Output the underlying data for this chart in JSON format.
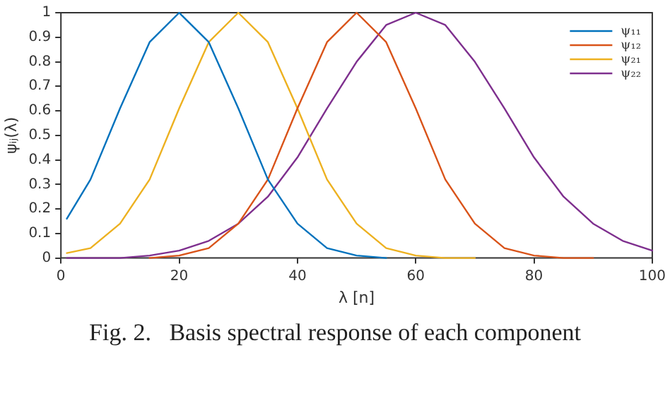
{
  "chart_data": {
    "type": "line",
    "xlabel": "λ [n]",
    "ylabel": "ψᵢⱼ(λ)",
    "x": [
      1,
      5,
      10,
      15,
      20,
      25,
      30,
      35,
      40,
      45,
      50,
      55,
      60,
      65,
      70,
      75,
      80,
      85,
      90,
      95,
      100
    ],
    "series": [
      {
        "name": "ψ₁₁",
        "color": "#0072bd",
        "values": [
          0.16,
          0.32,
          0.61,
          0.88,
          1,
          0.88,
          0.61,
          0.32,
          0.14,
          0.04,
          0.01,
          0,
          null,
          null,
          null,
          null,
          null,
          null,
          null,
          null,
          null
        ]
      },
      {
        "name": "ψ₁₂",
        "color": "#d95319",
        "values": [
          null,
          null,
          null,
          0,
          0.01,
          0.04,
          0.14,
          0.32,
          0.61,
          0.88,
          1,
          0.88,
          0.61,
          0.32,
          0.14,
          0.04,
          0.01,
          0,
          0,
          null,
          null
        ]
      },
      {
        "name": "ψ₂₁",
        "color": "#edb120",
        "values": [
          0.02,
          0.04,
          0.14,
          0.32,
          0.61,
          0.88,
          1,
          0.88,
          0.61,
          0.32,
          0.14,
          0.04,
          0.01,
          0,
          0,
          null,
          null,
          null,
          null,
          null,
          null
        ]
      },
      {
        "name": "ψ₂₂",
        "color": "#7e2f8e",
        "values": [
          0,
          0,
          0,
          0.01,
          0.03,
          0.07,
          0.14,
          0.25,
          0.41,
          0.61,
          0.8,
          0.95,
          1,
          0.95,
          0.8,
          0.61,
          0.41,
          0.25,
          0.14,
          0.07,
          0.03
        ]
      }
    ],
    "xlim": [
      0,
      100
    ],
    "xticks": [
      0,
      20,
      40,
      60,
      80,
      100
    ],
    "ylim": [
      0,
      1
    ],
    "yticks": [
      0,
      0.1,
      0.2,
      0.3,
      0.4,
      0.5,
      0.6,
      0.7,
      0.8,
      0.9,
      1
    ],
    "grid": false,
    "legend": "top right",
    "marker": "none",
    "line_style": "solid",
    "annotations": [
      "Fig. 2.   Basis spectral response of each component"
    ]
  }
}
